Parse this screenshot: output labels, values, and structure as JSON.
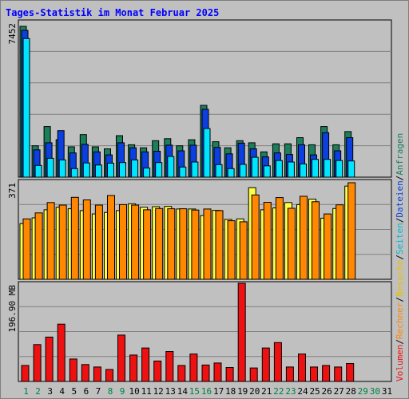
{
  "title": "Tages-Statistik im Monat Februar 2025",
  "colors": {
    "background": "#c0c0c0",
    "plot_background": "#c0c0c0",
    "title": "#0000ff",
    "axis_label": "#000000",
    "grid": "#808080",
    "anfragen": "#1b7f5a",
    "dateien": "#0b3fe0",
    "seiten": "#00e5ff",
    "besuche": "#ffff44",
    "rechner": "#ff8800",
    "volumen": "#ee1111",
    "weekday_label": "#000000",
    "weekend_label": "#008040"
  },
  "legend": {
    "right_top": [
      {
        "text": "Anfragen",
        "color": "#1b7f5a"
      },
      {
        "text": "/",
        "color": "#000000"
      },
      {
        "text": "Dateien",
        "color": "#0b3fe0"
      },
      {
        "text": "/",
        "color": "#000000"
      },
      {
        "text": "Seiten",
        "color": "#00b8d8"
      },
      {
        "text": "/",
        "color": "#000000"
      },
      {
        "text": "Besuche",
        "color": "#e8c000"
      },
      {
        "text": "/",
        "color": "#000000"
      },
      {
        "text": "Rechner",
        "color": "#ff8800"
      },
      {
        "text": "/",
        "color": "#000000"
      },
      {
        "text": "Volumen",
        "color": "#ee1111"
      }
    ]
  },
  "chart_data": [
    {
      "type": "bar",
      "name": "hits",
      "ylabel": "7452",
      "ymax": 7452,
      "categories": [
        "1",
        "2",
        "3",
        "4",
        "5",
        "6",
        "7",
        "8",
        "9",
        "10",
        "11",
        "12",
        "13",
        "14",
        "15",
        "16",
        "17",
        "18",
        "19",
        "20",
        "21",
        "22",
        "23",
        "24",
        "25",
        "26",
        "27",
        "28",
        "29",
        "30",
        "31"
      ],
      "weekend": [
        1,
        2,
        8,
        9,
        15,
        16,
        22,
        23,
        29,
        30
      ],
      "series": [
        {
          "name": "Anfragen",
          "color": "#1b7f5a",
          "values": [
            7452,
            1550,
            2500,
            1850,
            1500,
            2100,
            1500,
            1400,
            2050,
            1600,
            1450,
            1800,
            1900,
            1550,
            1850,
            3550,
            1750,
            1450,
            1800,
            1700,
            1250,
            1650,
            1650,
            1950,
            1600,
            2500,
            1600,
            2250,
            0,
            0,
            0
          ]
        },
        {
          "name": "Dateien",
          "color": "#0b3fe0",
          "values": [
            7250,
            1350,
            1700,
            2300,
            1200,
            1620,
            1250,
            1100,
            1700,
            1450,
            1250,
            1280,
            1580,
            1300,
            1580,
            3350,
            1470,
            1150,
            1680,
            1400,
            1000,
            1200,
            1120,
            1600,
            1100,
            2200,
            1300,
            1950,
            0,
            0,
            0
          ]
        },
        {
          "name": "Seiten",
          "color": "#00e5ff",
          "values": [
            6850,
            580,
            930,
            850,
            420,
            700,
            600,
            690,
            720,
            850,
            450,
            720,
            1020,
            500,
            750,
            2400,
            620,
            420,
            630,
            980,
            560,
            820,
            750,
            650,
            880,
            880,
            820,
            800,
            0,
            0,
            0
          ]
        }
      ]
    },
    {
      "type": "bar",
      "name": "visits",
      "ylabel": "371",
      "ymax": 371,
      "categories": [
        "1",
        "2",
        "3",
        "4",
        "5",
        "6",
        "7",
        "8",
        "9",
        "10",
        "11",
        "12",
        "13",
        "14",
        "15",
        "16",
        "17",
        "18",
        "19",
        "20",
        "21",
        "22",
        "23",
        "24",
        "25",
        "26",
        "27",
        "28",
        "29",
        "30",
        "31"
      ],
      "series": [
        {
          "name": "Besuche",
          "color": "#ffff44",
          "values": [
            214,
            236,
            267,
            277,
            271,
            264,
            251,
            257,
            264,
            290,
            277,
            279,
            280,
            270,
            270,
            245,
            265,
            230,
            232,
            352,
            267,
            274,
            295,
            287,
            308,
            235,
            272,
            358,
            0,
            0,
            0
          ]
        },
        {
          "name": "Rechner",
          "color": "#ff8800",
          "values": [
            232,
            255,
            295,
            285,
            315,
            305,
            285,
            322,
            287,
            285,
            267,
            272,
            271,
            271,
            266,
            270,
            264,
            225,
            221,
            324,
            296,
            314,
            273,
            319,
            298,
            251,
            286,
            371,
            0,
            0,
            0
          ]
        }
      ]
    },
    {
      "type": "bar",
      "name": "volume",
      "ylabel": "196.90 MB",
      "ymax": 196.9,
      "categories": [
        "1",
        "2",
        "3",
        "4",
        "5",
        "6",
        "7",
        "8",
        "9",
        "10",
        "11",
        "12",
        "13",
        "14",
        "15",
        "16",
        "17",
        "18",
        "19",
        "20",
        "21",
        "22",
        "23",
        "24",
        "25",
        "26",
        "27",
        "28",
        "29",
        "30",
        "31"
      ],
      "series": [
        {
          "name": "Volumen",
          "color": "#ee1111",
          "values": [
            32,
            74,
            89,
            115,
            45,
            34,
            29,
            24,
            93,
            53,
            67,
            41,
            60,
            32,
            55,
            33,
            37,
            28,
            196.9,
            27,
            67,
            78,
            29,
            55,
            29,
            32,
            29,
            36,
            0,
            0,
            0
          ]
        }
      ]
    }
  ]
}
